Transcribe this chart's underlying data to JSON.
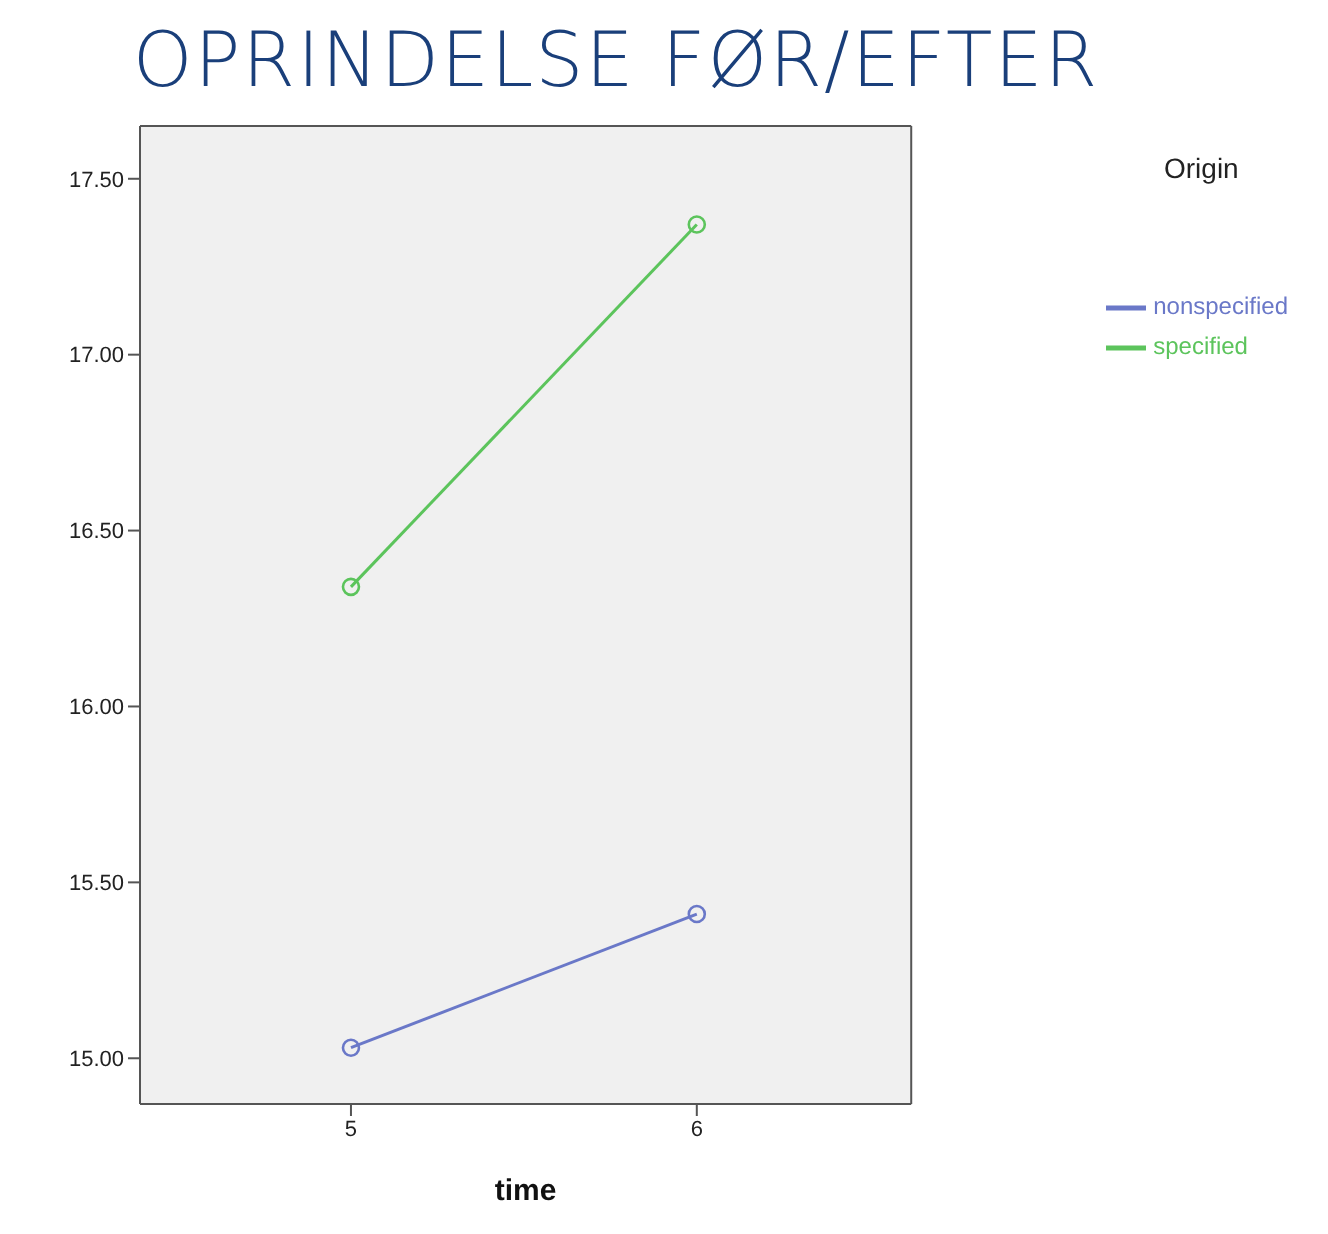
{
  "chart_data": {
    "type": "line",
    "title": "OPRINDELSE FØR/EFTER",
    "xlabel": "time",
    "legend_title": "Origin",
    "categories": [
      "5",
      "6"
    ],
    "series": [
      {
        "name": "nonspecified",
        "color": "#6a78c8",
        "values": [
          15.03,
          15.41
        ]
      },
      {
        "name": "specified",
        "color": "#5cc45c",
        "values": [
          16.34,
          17.37
        ]
      }
    ],
    "ylim": [
      14.87,
      17.65
    ],
    "yticks": [
      {
        "value": 15,
        "label": "15.00"
      },
      {
        "value": 15.5,
        "label": "15.50"
      },
      {
        "value": 16,
        "label": "16.00"
      },
      {
        "value": 16.5,
        "label": "16.50"
      },
      {
        "value": 17,
        "label": "17.00"
      },
      {
        "value": 17.5,
        "label": "17.50"
      }
    ],
    "grid": false,
    "legend": "top right",
    "marker": "circle",
    "line_style": "solid"
  }
}
